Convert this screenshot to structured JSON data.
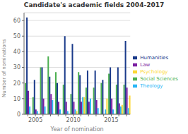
{
  "chart_data": {
    "type": "bar",
    "title": "Candidate's academic fields 2004-2017",
    "xlabel": "Year of nomination",
    "ylabel": "Number of nominations",
    "categories": [
      null,
      "2005",
      null,
      null,
      null,
      null,
      "2010",
      null,
      null,
      null,
      null,
      "2015",
      null,
      null
    ],
    "series": [
      {
        "name": "Social Sciences",
        "color": "#4caf50",
        "values": [
          20,
          11,
          30,
          37,
          27,
          19,
          13,
          27,
          17,
          17,
          20,
          26,
          19,
          19
        ]
      },
      {
        "name": "Humanities",
        "color": "#1a3a8a",
        "values": [
          62,
          22,
          30,
          24,
          20,
          50,
          45,
          25,
          28,
          28,
          22,
          30,
          30,
          47
        ]
      },
      {
        "name": "Law",
        "color": "#7b1fa2",
        "values": [
          15,
          3,
          10,
          13,
          8,
          8,
          8,
          8,
          8,
          9,
          0,
          10,
          7,
          17
        ]
      },
      {
        "name": "Theology",
        "color": "#29b6f6",
        "values": [
          5,
          2,
          5,
          9,
          3,
          2,
          3,
          11,
          10,
          4,
          3,
          3,
          5,
          4
        ]
      },
      {
        "name": "Psychology",
        "color": "#fdd835",
        "values": [
          0,
          0,
          0,
          0,
          0,
          0,
          2,
          11,
          0,
          0,
          10,
          0,
          6,
          12
        ]
      }
    ],
    "ylim": [
      0,
      65
    ],
    "yticks": [
      0,
      10,
      20,
      30,
      40,
      50,
      60
    ],
    "grid": true,
    "legend": "right"
  }
}
